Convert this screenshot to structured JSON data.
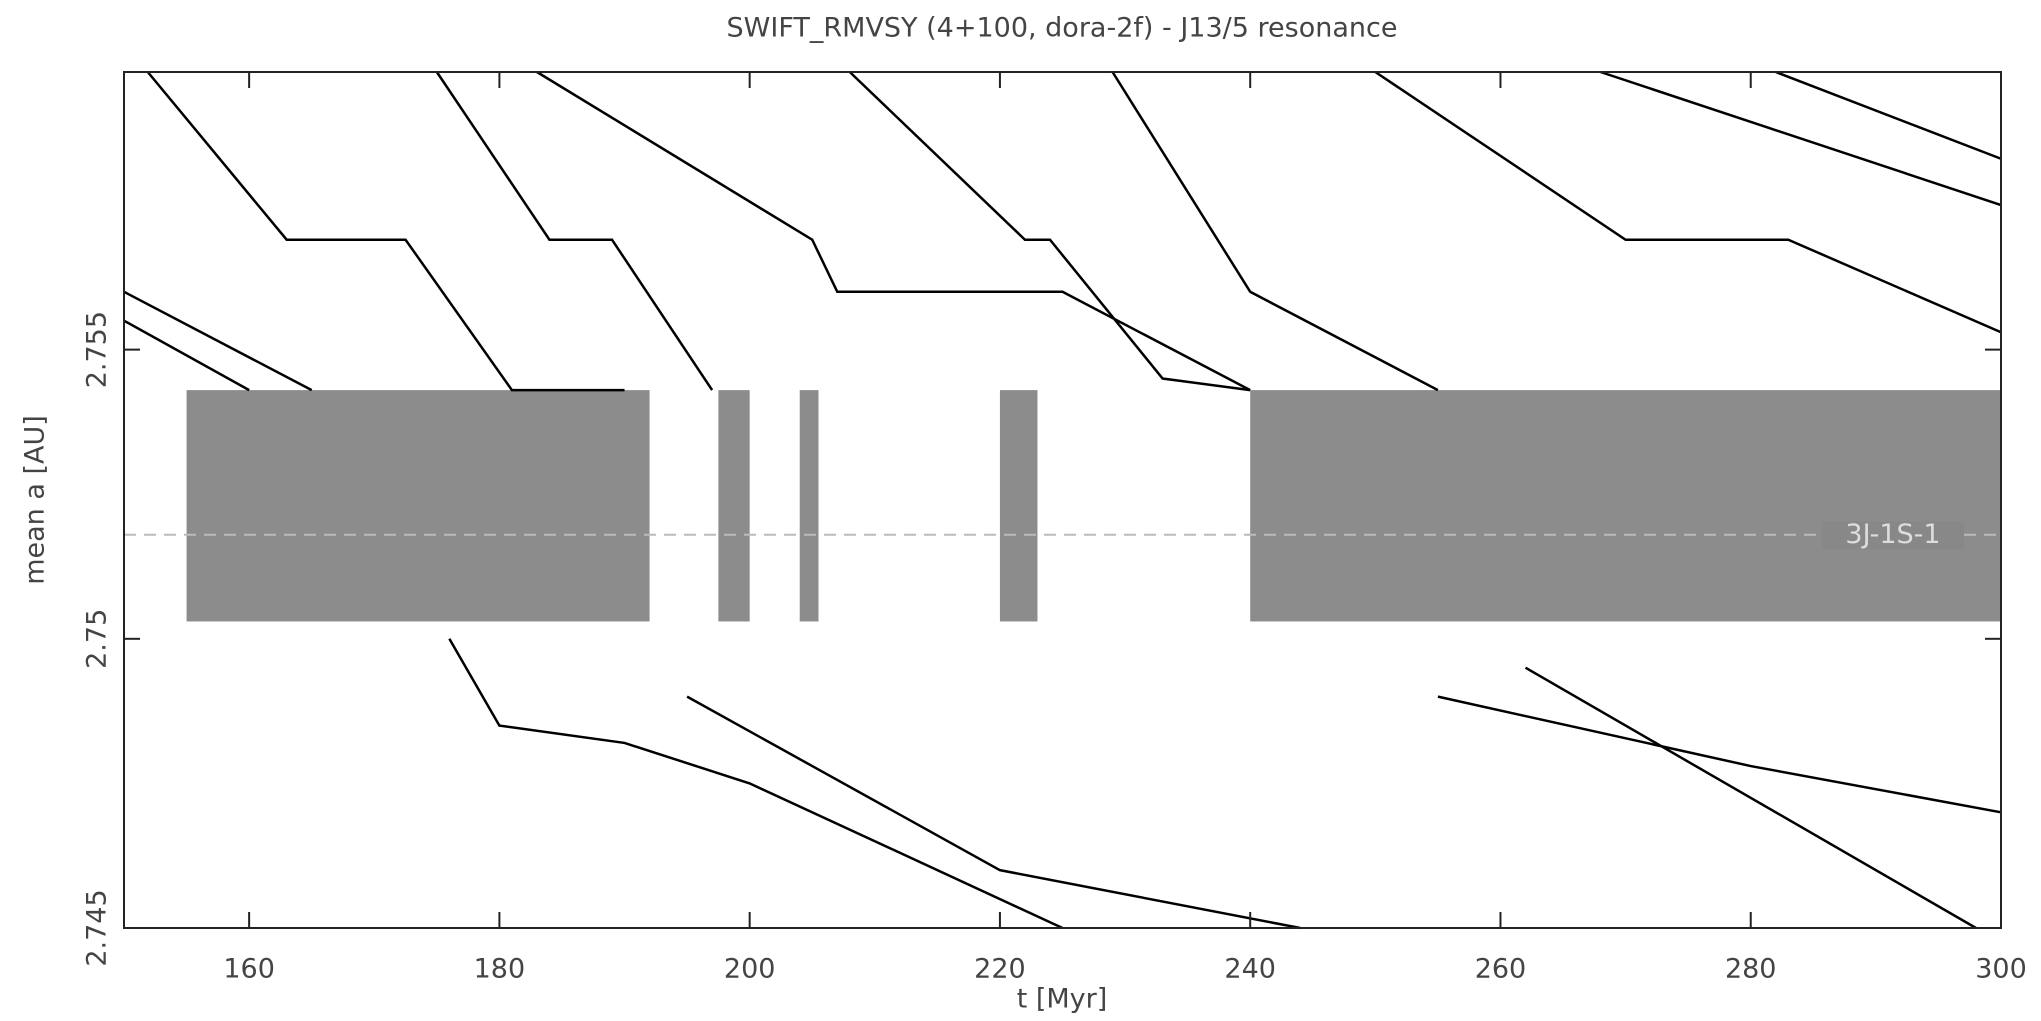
{
  "chart_data": {
    "type": "line",
    "title": "SWIFT_RMVSY (4+100, dora-2f) - J13/5 resonance",
    "x_label": "t [Myr]",
    "y_label": "mean a [AU]",
    "xlim": [
      150,
      300
    ],
    "ylim": [
      2.745,
      2.7598
    ],
    "xticks": [
      160,
      180,
      200,
      220,
      240,
      260,
      280,
      300
    ],
    "yticks": [
      2.745,
      2.75,
      2.755
    ],
    "resonance_line": {
      "value": 2.7518,
      "label": "3J-1S-1"
    },
    "color": "#000000",
    "series": [
      {
        "x": [
          151.9,
          163,
          172.5,
          181,
          190
        ],
        "values": [
          2.7598,
          2.7569,
          2.7569,
          2.7543,
          2.7543
        ]
      },
      {
        "x": [
          175,
          184,
          189,
          197
        ],
        "values": [
          2.7598,
          2.7569,
          2.7569,
          2.7543
        ]
      },
      {
        "x": [
          183,
          205,
          207,
          225,
          240
        ],
        "values": [
          2.7598,
          2.7569,
          2.756,
          2.756,
          2.7543
        ]
      },
      {
        "x": [
          150,
          165
        ],
        "values": [
          2.756,
          2.7543
        ]
      },
      {
        "x": [
          150,
          160
        ],
        "values": [
          2.7555,
          2.7543
        ]
      },
      {
        "x": [
          176,
          180,
          190,
          200,
          225
        ],
        "values": [
          2.75,
          2.7485,
          2.7482,
          2.7475,
          2.745
        ]
      },
      {
        "x": [
          195,
          205,
          220,
          244
        ],
        "values": [
          2.749,
          2.7478,
          2.746,
          2.745
        ]
      },
      {
        "x": [
          208,
          222,
          224,
          233,
          240
        ],
        "values": [
          2.7598,
          2.7569,
          2.7569,
          2.7545,
          2.7543
        ]
      },
      {
        "x": [
          229,
          240,
          255
        ],
        "values": [
          2.7598,
          2.756,
          2.7543
        ]
      },
      {
        "x": [
          250,
          270,
          283,
          300
        ],
        "values": [
          2.7598,
          2.7569,
          2.7569,
          2.7553
        ]
      },
      {
        "x": [
          268,
          300
        ],
        "values": [
          2.7598,
          2.7575
        ]
      },
      {
        "x": [
          282,
          300
        ],
        "values": [
          2.7598,
          2.7583
        ]
      },
      {
        "x": [
          255,
          280,
          300
        ],
        "values": [
          2.749,
          2.7478,
          2.747
        ]
      },
      {
        "x": [
          262,
          298
        ],
        "values": [
          2.7495,
          2.745
        ]
      }
    ],
    "chaotic_zones": [
      {
        "x": [
          155,
          192
        ],
        "y": [
          2.7503,
          2.7543
        ]
      },
      {
        "x": [
          197.5,
          200
        ],
        "y": [
          2.7503,
          2.7543
        ]
      },
      {
        "x": [
          204,
          205.5
        ],
        "y": [
          2.7503,
          2.7543
        ]
      },
      {
        "x": [
          220,
          223
        ],
        "y": [
          2.7503,
          2.7543
        ]
      },
      {
        "x": [
          240,
          300
        ],
        "y": [
          2.7503,
          2.7543
        ]
      }
    ]
  }
}
